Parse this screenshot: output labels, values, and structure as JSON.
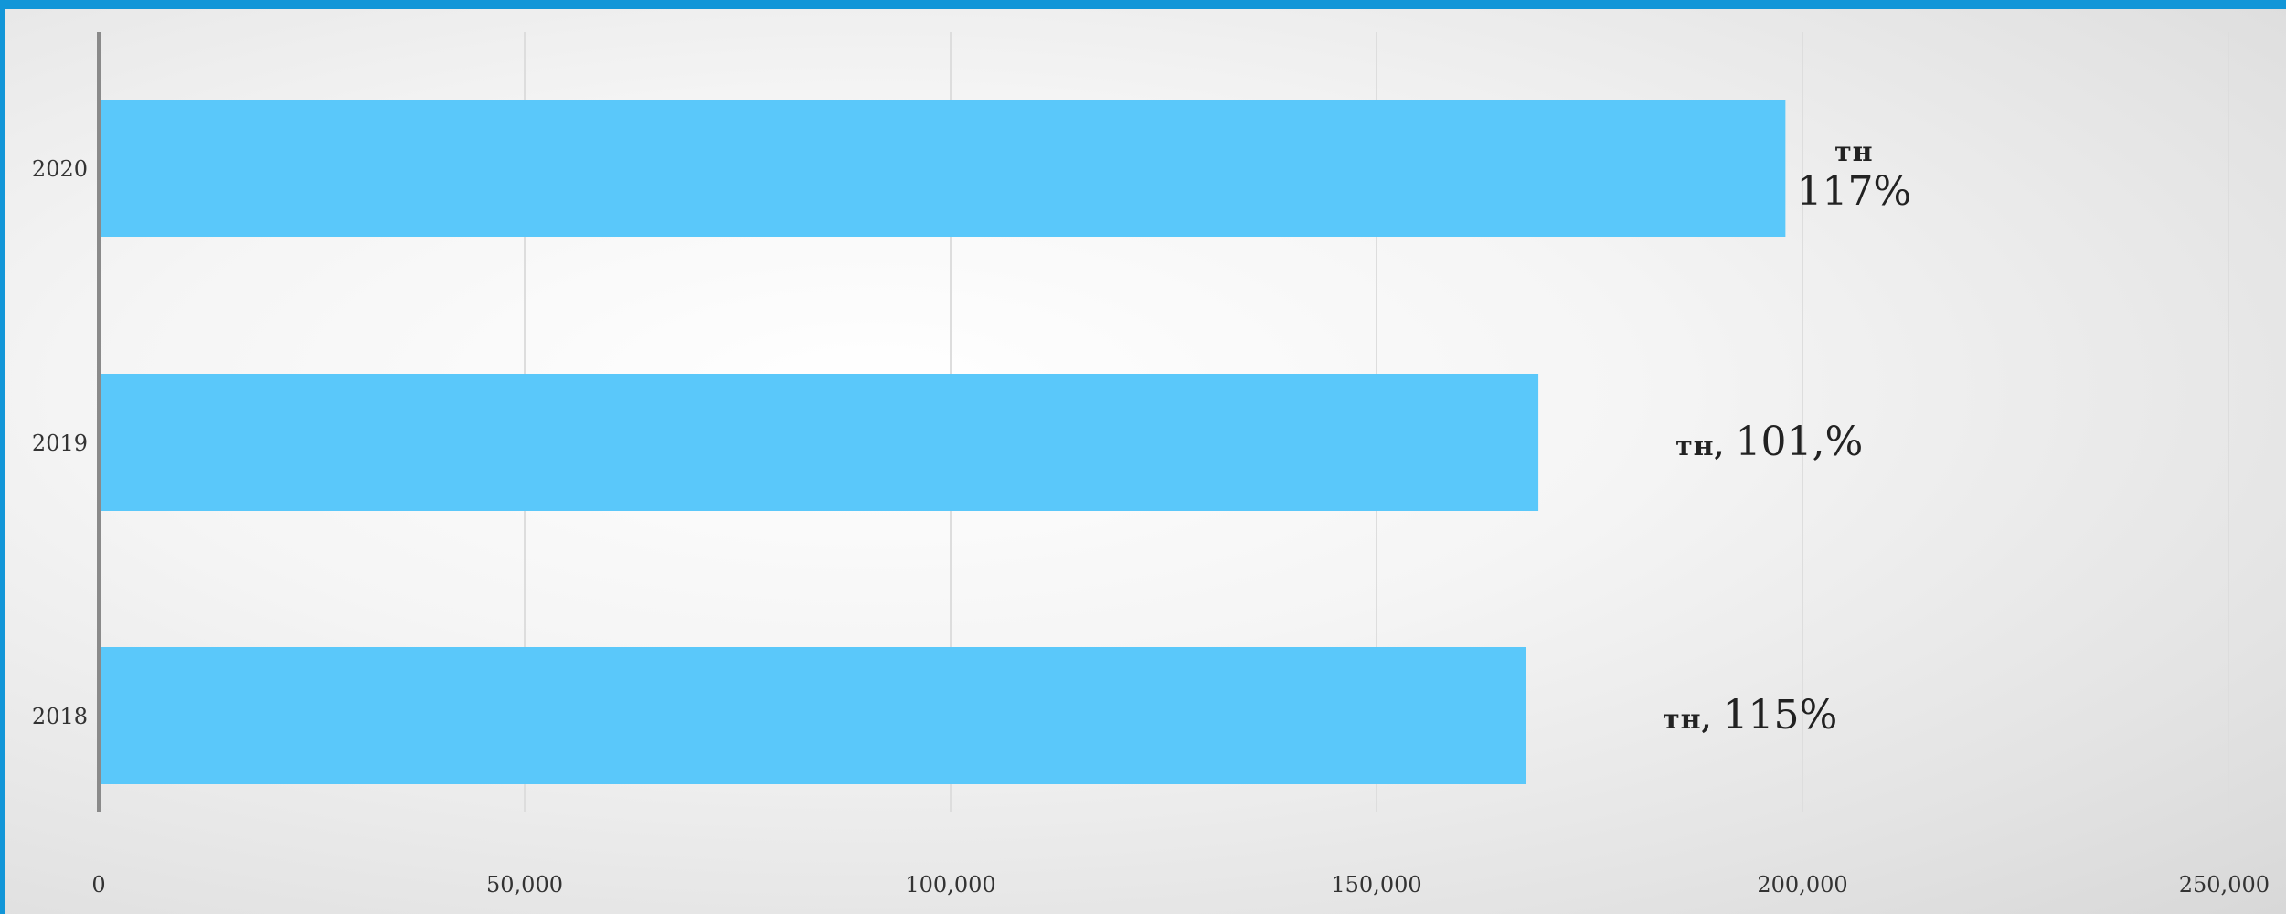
{
  "chart_data": {
    "type": "bar",
    "orientation": "horizontal",
    "categories": [
      "2020",
      "2019",
      "2018"
    ],
    "values": [
      198000,
      169000,
      167500
    ],
    "xlim": [
      0,
      250000
    ],
    "xticks": [
      "0",
      "50,000",
      "100,000",
      "150,000",
      "200,000",
      "250,000"
    ],
    "grid": "vertical",
    "bar_color": "#5ac8fa",
    "data_labels": [
      {
        "category": "2020",
        "unit": "тн",
        "value": "117%"
      },
      {
        "category": "2019",
        "unit": "тн,",
        "value": "101,%"
      },
      {
        "category": "2018",
        "unit": "тн,",
        "value": "115%"
      }
    ]
  },
  "colors": {
    "border": "#1296d8",
    "bar": "#5ac8fa",
    "axis": "#8a8a8a",
    "grid": "#dddddd"
  }
}
